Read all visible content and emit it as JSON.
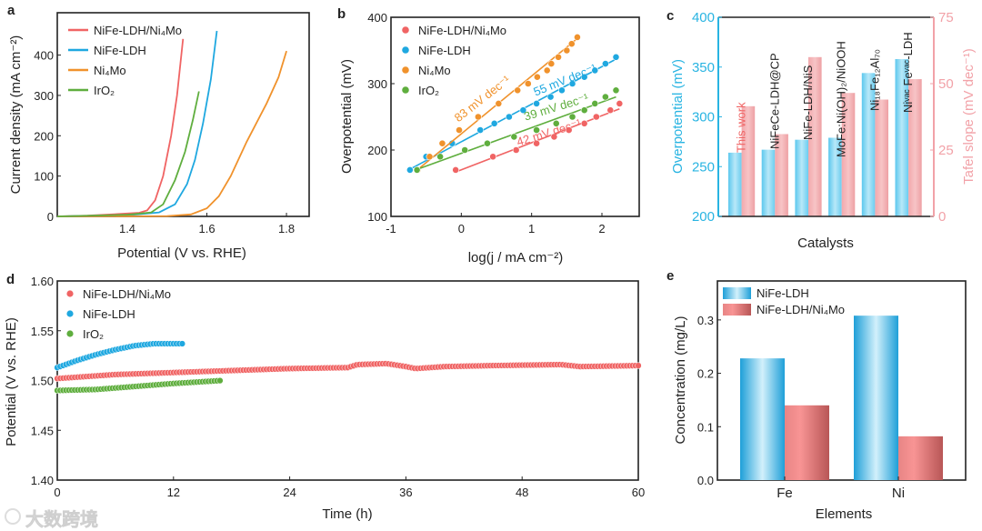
{
  "watermark": "大数跨境",
  "chart_data": [
    {
      "panel": "a",
      "type": "line",
      "xlabel": "Potential (V vs. RHE)",
      "ylabel": "Current density (mA cm⁻²)",
      "xlim": [
        1.224,
        1.857
      ],
      "ylim": [
        0,
        505
      ],
      "xticks": [
        1.4,
        1.6,
        1.8
      ],
      "xtick_labels": [
        "1.4",
        "1.6",
        "1.8"
      ],
      "yticks": [
        0,
        100,
        200,
        300,
        400
      ],
      "ytick_labels": [
        "0",
        "100",
        "200",
        "300",
        "400"
      ],
      "legend_position": "top-left",
      "series": [
        {
          "name": "NiFe-LDH/Ni₄Mo",
          "color": "#f06464",
          "points": [
            [
              1.224,
              0
            ],
            [
              1.3,
              2
            ],
            [
              1.38,
              6
            ],
            [
              1.43,
              9
            ],
            [
              1.45,
              15
            ],
            [
              1.47,
              40
            ],
            [
              1.49,
              100
            ],
            [
              1.51,
              200
            ],
            [
              1.525,
              300
            ],
            [
              1.54,
              440
            ]
          ]
        },
        {
          "name": "NiFe-LDH",
          "color": "#1fa8e0",
          "points": [
            [
              1.224,
              0
            ],
            [
              1.4,
              3
            ],
            [
              1.48,
              10
            ],
            [
              1.52,
              30
            ],
            [
              1.55,
              80
            ],
            [
              1.57,
              140
            ],
            [
              1.59,
              230
            ],
            [
              1.61,
              340
            ],
            [
              1.625,
              460
            ]
          ]
        },
        {
          "name": "Ni₄Mo",
          "color": "#f0922c",
          "points": [
            [
              1.224,
              0
            ],
            [
              1.5,
              1
            ],
            [
              1.56,
              5
            ],
            [
              1.6,
              20
            ],
            [
              1.63,
              50
            ],
            [
              1.66,
              100
            ],
            [
              1.7,
              185
            ],
            [
              1.75,
              280
            ],
            [
              1.78,
              345
            ],
            [
              1.8,
              410
            ]
          ]
        },
        {
          "name": "IrO₂",
          "color": "#5fae3e",
          "points": [
            [
              1.224,
              0
            ],
            [
              1.4,
              4
            ],
            [
              1.46,
              10
            ],
            [
              1.49,
              30
            ],
            [
              1.52,
              90
            ],
            [
              1.545,
              160
            ],
            [
              1.565,
              240
            ],
            [
              1.58,
              310
            ]
          ]
        }
      ]
    },
    {
      "panel": "b",
      "type": "scatter",
      "xlabel": "log(j / mA cm⁻²)",
      "ylabel": "Overpotential (mV)",
      "xlim": [
        -1,
        2.53
      ],
      "ylim": [
        100,
        400
      ],
      "xticks": [
        -1,
        0,
        1,
        2
      ],
      "xtick_labels": [
        "-1",
        "0",
        "1",
        "2"
      ],
      "yticks": [
        100,
        200,
        300,
        400
      ],
      "ytick_labels": [
        "100",
        "200",
        "300",
        "400"
      ],
      "legend_position": "top-left",
      "series": [
        {
          "name": "NiFe-LDH/Ni₄Mo",
          "color": "#f06464",
          "slope_label": "42 mV dec⁻¹",
          "fit": [
            [
              -0.08,
              167
            ],
            [
              2.25,
              262
            ]
          ],
          "points": [
            [
              -0.08,
              170
            ],
            [
              0.45,
              190
            ],
            [
              0.78,
              200
            ],
            [
              1.07,
              210
            ],
            [
              1.32,
              220
            ],
            [
              1.53,
              230
            ],
            [
              1.75,
              240
            ],
            [
              1.92,
              250
            ],
            [
              2.12,
              260
            ],
            [
              2.25,
              270
            ]
          ]
        },
        {
          "name": "NiFe-LDH",
          "color": "#1fa8e0",
          "slope_label": "55 mV dec⁻¹",
          "fit": [
            [
              -0.75,
              170
            ],
            [
              2.2,
              337
            ]
          ],
          "points": [
            [
              -0.73,
              170
            ],
            [
              -0.5,
              190
            ],
            [
              -0.13,
              210
            ],
            [
              0.27,
              230
            ],
            [
              0.47,
              240
            ],
            [
              0.68,
              250
            ],
            [
              0.88,
              260
            ],
            [
              1.07,
              270
            ],
            [
              1.27,
              280
            ],
            [
              1.43,
              290
            ],
            [
              1.58,
              300
            ],
            [
              1.75,
              310
            ],
            [
              1.9,
              320
            ],
            [
              2.05,
              330
            ],
            [
              2.2,
              340
            ]
          ]
        },
        {
          "name": "Ni₄Mo",
          "color": "#f0922c",
          "slope_label": "83 mV dec⁻¹",
          "fit": [
            [
              -0.65,
              168
            ],
            [
              1.65,
              368
            ]
          ],
          "points": [
            [
              -0.62,
              170
            ],
            [
              -0.45,
              190
            ],
            [
              -0.27,
              210
            ],
            [
              -0.03,
              230
            ],
            [
              0.24,
              250
            ],
            [
              0.53,
              270
            ],
            [
              0.8,
              290
            ],
            [
              0.95,
              300
            ],
            [
              1.08,
              310
            ],
            [
              1.22,
              320
            ],
            [
              1.28,
              330
            ],
            [
              1.38,
              340
            ],
            [
              1.5,
              350
            ],
            [
              1.57,
              360
            ],
            [
              1.65,
              370
            ]
          ]
        },
        {
          "name": "IrO₂",
          "color": "#5fae3e",
          "slope_label": "39 mV dec⁻¹",
          "fit": [
            [
              -0.65,
              170
            ],
            [
              2.2,
              280
            ]
          ],
          "points": [
            [
              -0.63,
              170
            ],
            [
              -0.3,
              190
            ],
            [
              0.05,
              200
            ],
            [
              0.37,
              210
            ],
            [
              0.75,
              220
            ],
            [
              1.07,
              230
            ],
            [
              1.35,
              240
            ],
            [
              1.58,
              250
            ],
            [
              1.75,
              260
            ],
            [
              1.9,
              270
            ],
            [
              2.05,
              280
            ],
            [
              2.2,
              290
            ]
          ]
        }
      ]
    },
    {
      "panel": "c",
      "type": "bar",
      "xlabel": "Catalysts",
      "ylabel": "Overpotential (mV)",
      "ylabel_right": "Tafel slope (mV dec⁻¹)",
      "ylim": [
        200,
        400
      ],
      "ylim_right": [
        0,
        75
      ],
      "yticks": [
        200,
        250,
        300,
        350,
        400
      ],
      "ytick_labels": [
        "200",
        "250",
        "300",
        "350",
        "400"
      ],
      "yticks_right": [
        0,
        25,
        50,
        75
      ],
      "ytick_labels_right": [
        "0",
        "25",
        "50",
        "75"
      ],
      "colors": {
        "left": "#29b4e2",
        "right": "#f2a2a8",
        "highlight": "#f06464"
      },
      "categories": [
        "This work",
        "NiFeCe-LDH@CP",
        "NiFe-LDH/NiS",
        "MoFe:Ni(OH)₂/NiOOH",
        "Ni₁₈Fe₁₂Al₇₀",
        "Niᵛᵃᶜ Feᵛᵃᶜ-LDH"
      ],
      "series": [
        {
          "name": "Overpotential",
          "axis": "left",
          "values": [
            264,
            267,
            277,
            279,
            344,
            358
          ]
        },
        {
          "name": "Tafel slope",
          "axis": "right",
          "values": [
            41.5,
            31,
            60,
            46.5,
            44,
            51.7
          ]
        }
      ]
    },
    {
      "panel": "d",
      "type": "scatter",
      "xlabel": "Time (h)",
      "ylabel": "Potential (V vs. RHE)",
      "xlim": [
        0,
        60
      ],
      "ylim": [
        1.4,
        1.6
      ],
      "xticks": [
        0,
        12,
        24,
        36,
        48,
        60
      ],
      "xtick_labels": [
        "0",
        "12",
        "24",
        "36",
        "48",
        "60"
      ],
      "yticks": [
        1.4,
        1.45,
        1.5,
        1.55,
        1.6
      ],
      "ytick_labels": [
        "1.40",
        "1.45",
        "1.50",
        "1.55",
        "1.60"
      ],
      "legend_position": "top-left",
      "series": [
        {
          "name": "NiFe-LDH/Ni₄Mo",
          "color": "#f06464",
          "points": [
            [
              0,
              1.502
            ],
            [
              6,
              1.506
            ],
            [
              12,
              1.508
            ],
            [
              18,
              1.51
            ],
            [
              24,
              1.512
            ],
            [
              30,
              1.513
            ],
            [
              31,
              1.516
            ],
            [
              34,
              1.517
            ],
            [
              36,
              1.514
            ],
            [
              37,
              1.512
            ],
            [
              40,
              1.514
            ],
            [
              45,
              1.515
            ],
            [
              52,
              1.516
            ],
            [
              54,
              1.514
            ],
            [
              60,
              1.515
            ]
          ]
        },
        {
          "name": "NiFe-LDH",
          "color": "#1fa8e0",
          "points": [
            [
              0,
              1.513
            ],
            [
              2,
              1.52
            ],
            [
              4,
              1.526
            ],
            [
              6,
              1.531
            ],
            [
              8,
              1.535
            ],
            [
              10,
              1.537
            ],
            [
              13,
              1.537
            ]
          ]
        },
        {
          "name": "IrO₂",
          "color": "#5fae3e",
          "points": [
            [
              0,
              1.49
            ],
            [
              4,
              1.491
            ],
            [
              8,
              1.494
            ],
            [
              12,
              1.497
            ],
            [
              17,
              1.5
            ]
          ]
        }
      ]
    },
    {
      "panel": "e",
      "type": "bar",
      "xlabel": "Elements",
      "ylabel": "Concentration (mg/L)",
      "ylim": [
        0,
        0.373
      ],
      "yticks": [
        0,
        0.1,
        0.2,
        0.3
      ],
      "ytick_labels": [
        "0.0",
        "0.1",
        "0.2",
        "0.3"
      ],
      "categories": [
        "Fe",
        "Ni"
      ],
      "legend_position": "top-left",
      "series": [
        {
          "name": "NiFe-LDH",
          "color": "#1fa3dc",
          "values": [
            0.228,
            0.308
          ]
        },
        {
          "name": "NiFe-LDH/Ni₄Mo",
          "color": "#e07070",
          "values": [
            0.14,
            0.082
          ]
        }
      ]
    }
  ],
  "panel_letters": [
    "a",
    "b",
    "c",
    "d",
    "e"
  ]
}
